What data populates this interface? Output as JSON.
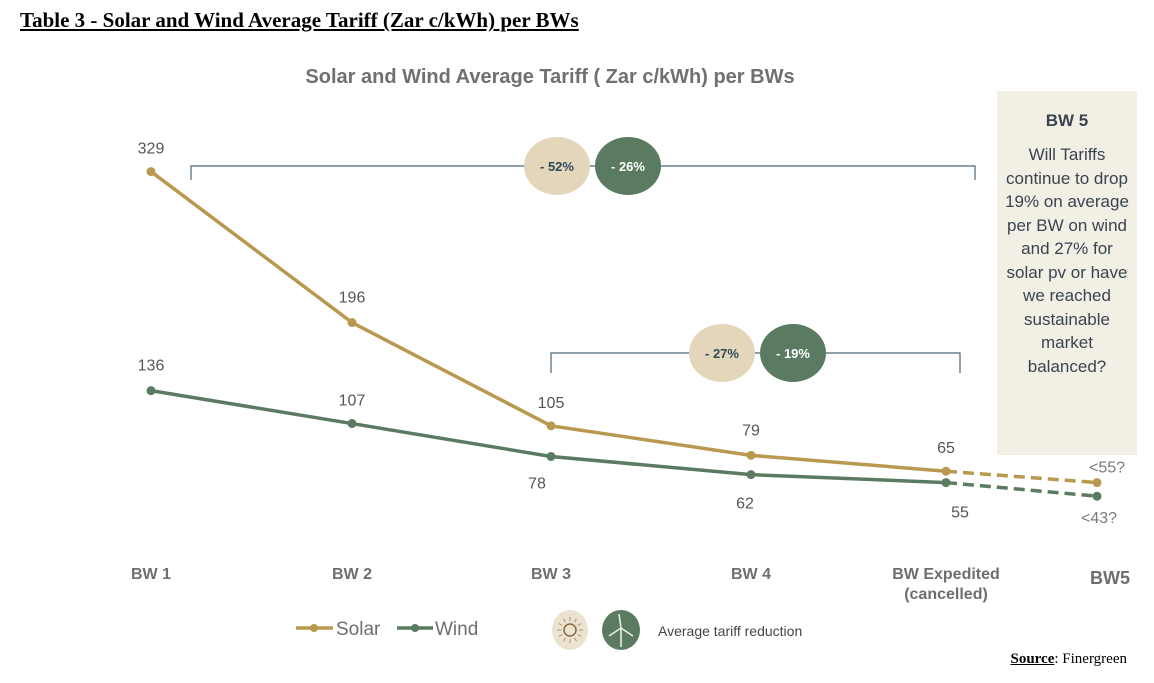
{
  "doc_title": "Table 3 - Solar and Wind Average Tariff (Zar c/kWh) per BWs",
  "source_label": "Source",
  "source_value": ": Finergreen",
  "note": {
    "heading": "BW 5",
    "body": "Will Tariffs continue to drop 19% on average per BW on wind and 27% for solar pv or have we reached sustainable market balanced?"
  },
  "chart_data": {
    "type": "line",
    "title": "Solar and Wind Average Tariff (  Zar c/kWh) per BWs",
    "categories": [
      "BW 1",
      "BW 2",
      "BW 3",
      "BW 4",
      "BW Expedited (cancelled)",
      "BW5"
    ],
    "series": [
      {
        "name": "Solar",
        "color": "#b8994f",
        "values": [
          329,
          196,
          105,
          79,
          65,
          55
        ],
        "labels": [
          "329",
          "196",
          "105",
          "79",
          "65",
          "<55?"
        ],
        "projected_from_index": 4
      },
      {
        "name": "Wind",
        "color": "#5a7a62",
        "values": [
          136,
          107,
          78,
          62,
          55,
          43
        ],
        "labels": [
          "136",
          "107",
          "78",
          "62",
          "55",
          "<43?"
        ],
        "projected_from_index": 4
      }
    ],
    "reductions": [
      {
        "span": [
          "BW 1",
          "BW Expedited (cancelled)"
        ],
        "solar": "- 52%",
        "wind": "- 26%"
      },
      {
        "span": [
          "BW 3",
          "BW Expedited (cancelled)"
        ],
        "solar": "- 27%",
        "wind": "- 19%"
      }
    ],
    "legend": {
      "solar": "Solar",
      "wind": "Wind",
      "reduction_label": "Average tariff reduction",
      "solar_icon": "sun-icon",
      "wind_icon": "wind-turbine-icon",
      "placement": "bottom"
    },
    "grid": false
  }
}
